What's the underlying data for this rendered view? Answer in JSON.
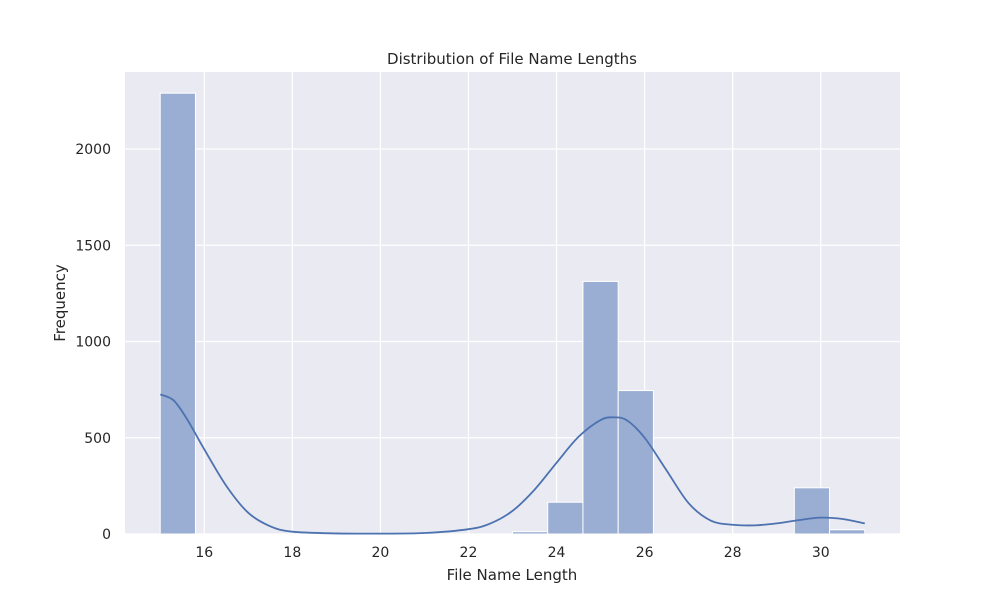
{
  "chart_data": {
    "type": "bar",
    "subtype": "histogram-with-kde",
    "title": "Distribution of File Name Lengths",
    "xlabel": "File Name Length",
    "ylabel": "Frequency",
    "xlim": [
      14.2,
      31.8
    ],
    "ylim": [
      0,
      2400
    ],
    "xticks": [
      16,
      18,
      20,
      22,
      24,
      26,
      28,
      30
    ],
    "yticks": [
      0,
      500,
      1000,
      1500,
      2000
    ],
    "grid": true,
    "background": "#eaeaf2",
    "grid_color": "#ffffff",
    "bar_color": "#9aadd2",
    "bar_edge_color": "#ffffff",
    "kde_color": "#4c72b0",
    "bins": [
      {
        "x0": 15.0,
        "x1": 15.8,
        "count": 2290
      },
      {
        "x0": 15.8,
        "x1": 16.6,
        "count": 0
      },
      {
        "x0": 16.6,
        "x1": 17.4,
        "count": 0
      },
      {
        "x0": 17.4,
        "x1": 18.2,
        "count": 0
      },
      {
        "x0": 18.2,
        "x1": 19.0,
        "count": 0
      },
      {
        "x0": 19.0,
        "x1": 19.8,
        "count": 0
      },
      {
        "x0": 19.8,
        "x1": 20.6,
        "count": 0
      },
      {
        "x0": 20.6,
        "x1": 21.4,
        "count": 0
      },
      {
        "x0": 21.4,
        "x1": 22.2,
        "count": 0
      },
      {
        "x0": 22.2,
        "x1": 23.0,
        "count": 0
      },
      {
        "x0": 23.0,
        "x1": 23.8,
        "count": 12
      },
      {
        "x0": 23.8,
        "x1": 24.6,
        "count": 165
      },
      {
        "x0": 24.6,
        "x1": 25.4,
        "count": 1312
      },
      {
        "x0": 25.4,
        "x1": 26.2,
        "count": 745
      },
      {
        "x0": 26.2,
        "x1": 27.0,
        "count": 0
      },
      {
        "x0": 27.0,
        "x1": 27.8,
        "count": 0
      },
      {
        "x0": 27.8,
        "x1": 28.6,
        "count": 0
      },
      {
        "x0": 28.6,
        "x1": 29.4,
        "count": 0
      },
      {
        "x0": 29.4,
        "x1": 30.2,
        "count": 240
      },
      {
        "x0": 30.2,
        "x1": 31.0,
        "count": 22
      }
    ],
    "kde": {
      "x": [
        15.0,
        15.3,
        15.6,
        16.0,
        16.5,
        17.0,
        17.5,
        18.0,
        19.0,
        20.0,
        21.0,
        22.0,
        22.5,
        23.0,
        23.5,
        24.0,
        24.5,
        25.0,
        25.3,
        25.6,
        26.0,
        26.5,
        27.0,
        27.5,
        28.0,
        28.5,
        29.0,
        29.5,
        30.0,
        30.5,
        31.0
      ],
      "y": [
        725,
        695,
        600,
        440,
        250,
        110,
        40,
        12,
        3,
        2,
        5,
        25,
        55,
        120,
        230,
        370,
        505,
        592,
        606,
        590,
        500,
        330,
        160,
        70,
        48,
        45,
        55,
        72,
        85,
        78,
        55
      ]
    }
  }
}
